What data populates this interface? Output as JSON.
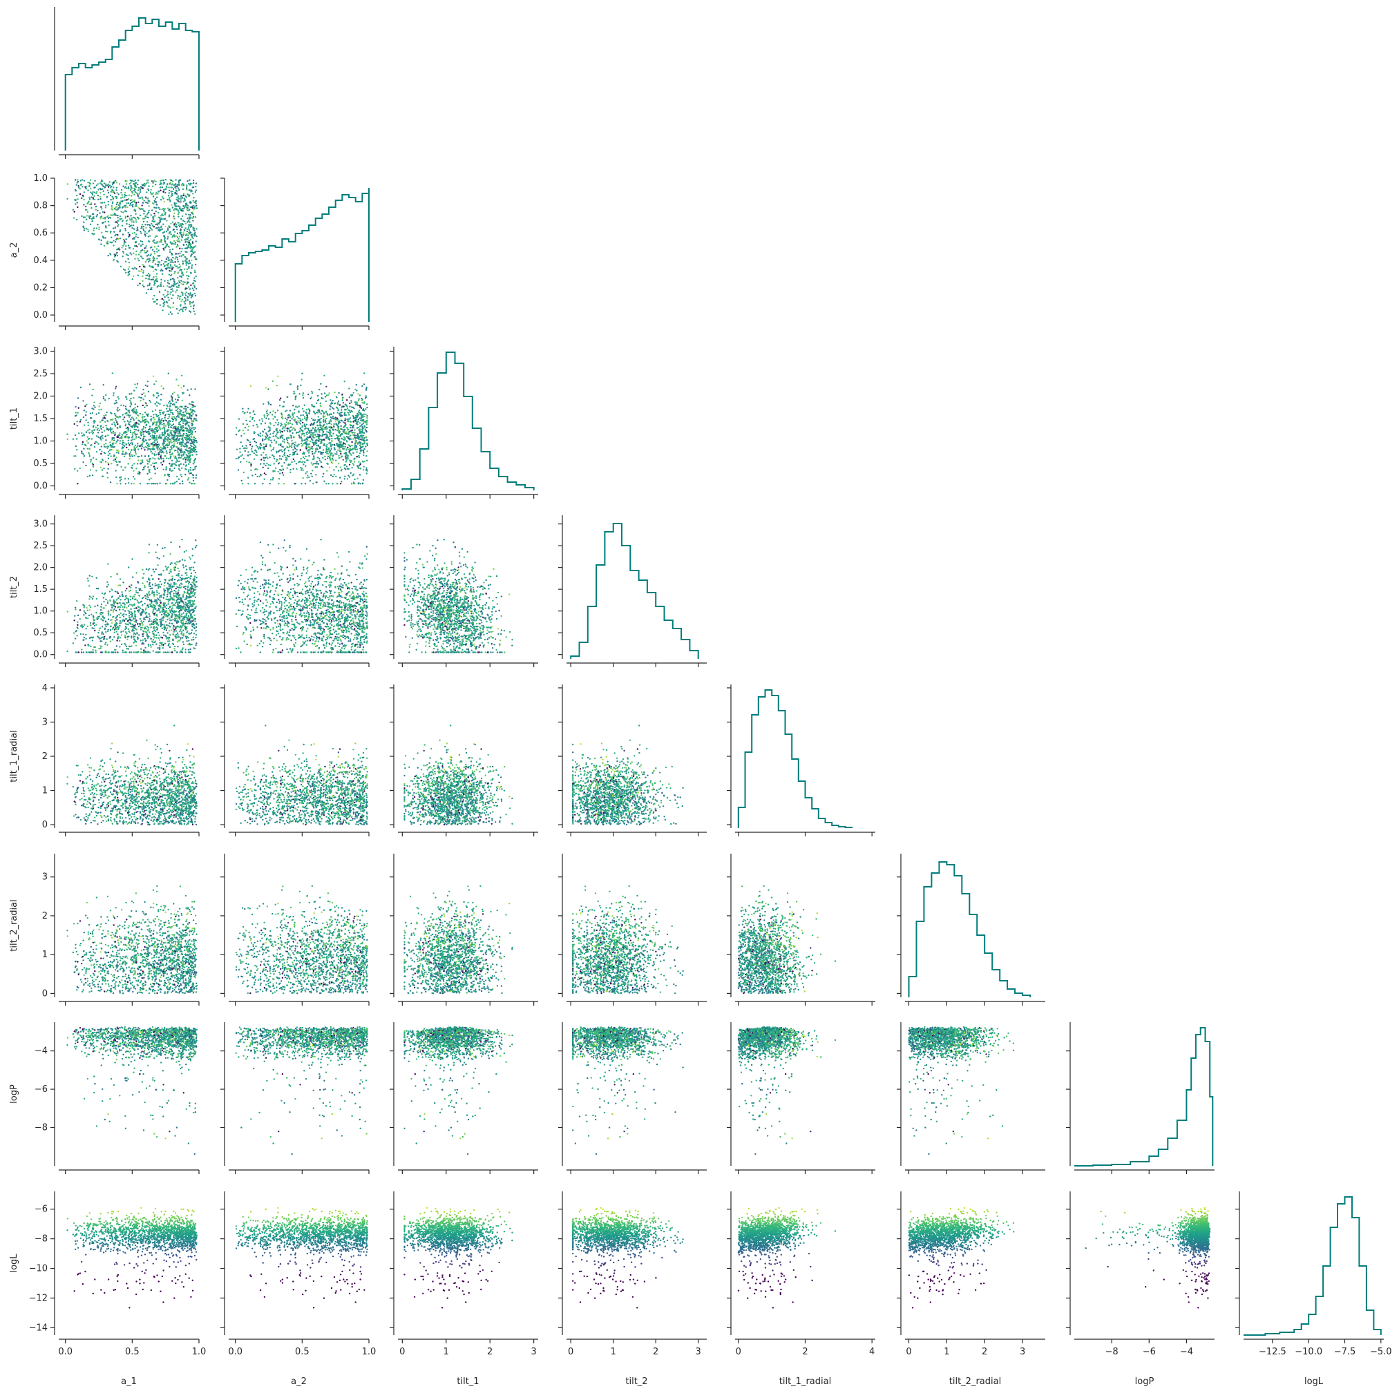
{
  "chart_data": {
    "type": "scatter",
    "title": "",
    "variables": [
      "a_1",
      "a_2",
      "tilt_1",
      "tilt_2",
      "tilt_1_radial",
      "tilt_2_radial",
      "logP",
      "logL"
    ],
    "axis_ranges": {
      "a_1": [
        -0.05,
        1.0
      ],
      "a_2": [
        -0.05,
        1.0
      ],
      "tilt_1": [
        -0.1,
        3.1
      ],
      "tilt_2": [
        -0.1,
        3.2
      ],
      "tilt_1_radial": [
        -0.1,
        4.1
      ],
      "tilt_2_radial": [
        -0.1,
        3.6
      ],
      "logP": [
        -10.0,
        -2.5
      ],
      "logL": [
        -14.5,
        -4.8
      ]
    },
    "x_ticks": {
      "a_1": {
        "values": [
          0.0,
          0.5,
          1.0
        ],
        "labels": [
          "0.0",
          "0.5",
          "1.0"
        ]
      },
      "a_2": {
        "values": [
          0.0,
          0.5,
          1.0
        ],
        "labels": [
          "0.0",
          "0.5",
          "1.0"
        ]
      },
      "tilt_1": {
        "values": [
          0,
          1,
          2,
          3
        ],
        "labels": [
          "0",
          "1",
          "2",
          "3"
        ]
      },
      "tilt_2": {
        "values": [
          0,
          1,
          2,
          3
        ],
        "labels": [
          "0",
          "1",
          "2",
          "3"
        ]
      },
      "tilt_1_radial": {
        "values": [
          0,
          2,
          4
        ],
        "labels": [
          "0",
          "2",
          "4"
        ]
      },
      "tilt_2_radial": {
        "values": [
          0,
          1,
          2,
          3
        ],
        "labels": [
          "0",
          "1",
          "2",
          "3"
        ]
      },
      "logP": {
        "values": [
          -8,
          -6,
          -4
        ],
        "labels": [
          "−8",
          "−6",
          "−4"
        ]
      },
      "logL": {
        "values": [
          -12.5,
          -10.0,
          -7.5,
          -5.0
        ],
        "labels": [
          "−12.5",
          "−10.0",
          "−7.5",
          "−5.0"
        ]
      }
    },
    "y_ticks": {
      "a_2": {
        "values": [
          0.0,
          0.2,
          0.4,
          0.6,
          0.8,
          1.0
        ],
        "labels": [
          "0.0",
          "0.2",
          "0.4",
          "0.6",
          "0.8",
          "1.0"
        ]
      },
      "tilt_1": {
        "values": [
          0.0,
          0.5,
          1.0,
          1.5,
          2.0,
          2.5,
          3.0
        ],
        "labels": [
          "0.0",
          "0.5",
          "1.0",
          "1.5",
          "2.0",
          "2.5",
          "3.0"
        ]
      },
      "tilt_2": {
        "values": [
          0.0,
          0.5,
          1.0,
          1.5,
          2.0,
          2.5,
          3.0
        ],
        "labels": [
          "0.0",
          "0.5",
          "1.0",
          "1.5",
          "2.0",
          "2.5",
          "3.0"
        ]
      },
      "tilt_1_radial": {
        "values": [
          0,
          1,
          2,
          3,
          4
        ],
        "labels": [
          "0",
          "1",
          "2",
          "3",
          "4"
        ]
      },
      "tilt_2_radial": {
        "values": [
          0,
          1,
          2,
          3
        ],
        "labels": [
          "0",
          "1",
          "2",
          "3"
        ]
      },
      "logP": {
        "values": [
          -8,
          -6,
          -4
        ],
        "labels": [
          "−8",
          "−6",
          "−4"
        ]
      },
      "logL": {
        "values": [
          -14,
          -12,
          -10,
          -8,
          -6
        ],
        "labels": [
          "−14",
          "−12",
          "−10",
          "−8",
          "−6"
        ]
      }
    },
    "histograms": {
      "a_1": {
        "x": [
          0.0,
          0.05,
          0.1,
          0.15,
          0.2,
          0.25,
          0.3,
          0.35,
          0.4,
          0.45,
          0.5,
          0.55,
          0.6,
          0.65,
          0.7,
          0.75,
          0.8,
          0.85,
          0.9,
          0.95,
          1.0
        ],
        "values": [
          0.55,
          0.6,
          0.63,
          0.6,
          0.62,
          0.64,
          0.66,
          0.75,
          0.8,
          0.87,
          0.9,
          0.96,
          0.92,
          0.95,
          0.9,
          0.93,
          0.88,
          0.92,
          0.87,
          0.86,
          0.86
        ]
      },
      "a_2": {
        "x": [
          0.0,
          0.05,
          0.1,
          0.15,
          0.2,
          0.25,
          0.3,
          0.35,
          0.4,
          0.45,
          0.5,
          0.55,
          0.6,
          0.65,
          0.7,
          0.75,
          0.8,
          0.85,
          0.9,
          0.95,
          1.0
        ],
        "values": [
          0.42,
          0.48,
          0.5,
          0.51,
          0.52,
          0.55,
          0.54,
          0.6,
          0.58,
          0.64,
          0.66,
          0.7,
          0.75,
          0.78,
          0.83,
          0.88,
          0.92,
          0.9,
          0.87,
          0.93,
          0.97
        ]
      },
      "tilt_1": {
        "x": [
          0.0,
          0.2,
          0.4,
          0.6,
          0.8,
          1.0,
          1.2,
          1.4,
          1.6,
          1.8,
          2.0,
          2.2,
          2.4,
          2.6,
          2.8,
          3.0
        ],
        "values": [
          0.01,
          0.08,
          0.3,
          0.6,
          0.85,
          1.0,
          0.92,
          0.68,
          0.45,
          0.28,
          0.16,
          0.1,
          0.06,
          0.04,
          0.02,
          0.01
        ]
      },
      "tilt_2": {
        "x": [
          0.0,
          0.2,
          0.4,
          0.6,
          0.8,
          1.0,
          1.2,
          1.4,
          1.6,
          1.8,
          2.0,
          2.2,
          2.4,
          2.6,
          2.8,
          3.0
        ],
        "values": [
          0.02,
          0.12,
          0.38,
          0.68,
          0.92,
          0.98,
          0.82,
          0.64,
          0.57,
          0.48,
          0.38,
          0.28,
          0.22,
          0.14,
          0.06,
          0.02
        ]
      },
      "tilt_1_radial": {
        "x": [
          0.0,
          0.2,
          0.4,
          0.6,
          0.8,
          1.0,
          1.2,
          1.4,
          1.6,
          1.8,
          2.0,
          2.2,
          2.4,
          2.6,
          2.8,
          3.0,
          3.2,
          3.4
        ],
        "values": [
          0.15,
          0.55,
          0.82,
          0.95,
          1.0,
          0.96,
          0.85,
          0.68,
          0.5,
          0.34,
          0.22,
          0.14,
          0.07,
          0.04,
          0.02,
          0.01,
          0.005,
          0.003
        ]
      },
      "tilt_2_radial": {
        "x": [
          0.0,
          0.2,
          0.4,
          0.6,
          0.8,
          1.0,
          1.2,
          1.4,
          1.6,
          1.8,
          2.0,
          2.2,
          2.4,
          2.6,
          2.8,
          3.0,
          3.2
        ],
        "values": [
          0.15,
          0.55,
          0.8,
          0.9,
          0.98,
          0.96,
          0.88,
          0.75,
          0.6,
          0.45,
          0.32,
          0.2,
          0.12,
          0.06,
          0.03,
          0.015,
          0.005
        ]
      },
      "logP": {
        "x": [
          -10.0,
          -9.0,
          -8.0,
          -7.0,
          -6.0,
          -5.5,
          -5.0,
          -4.5,
          -4.0,
          -3.75,
          -3.5,
          -3.25,
          -3.0,
          -2.75,
          -2.6
        ],
        "values": [
          0.0,
          0.005,
          0.01,
          0.03,
          0.07,
          0.12,
          0.2,
          0.33,
          0.55,
          0.78,
          0.95,
          1.0,
          0.9,
          0.5,
          0.0
        ]
      },
      "logL": {
        "x": [
          -14.5,
          -13.0,
          -12.0,
          -11.0,
          -10.5,
          -10.0,
          -9.5,
          -9.0,
          -8.5,
          -8.0,
          -7.5,
          -7.0,
          -6.5,
          -6.0,
          -5.5,
          -5.0
        ],
        "values": [
          0.0,
          0.01,
          0.02,
          0.04,
          0.08,
          0.15,
          0.28,
          0.5,
          0.78,
          0.95,
          1.0,
          0.85,
          0.5,
          0.18,
          0.04,
          0.0
        ]
      }
    },
    "points_per_panel": 1600,
    "point_size": 1.2,
    "grid": false,
    "legend": "none",
    "colors": {
      "histogram": "#007c7c",
      "scatter_colormap": "viridis",
      "axis": "#262626",
      "background": "#ffffff"
    }
  }
}
